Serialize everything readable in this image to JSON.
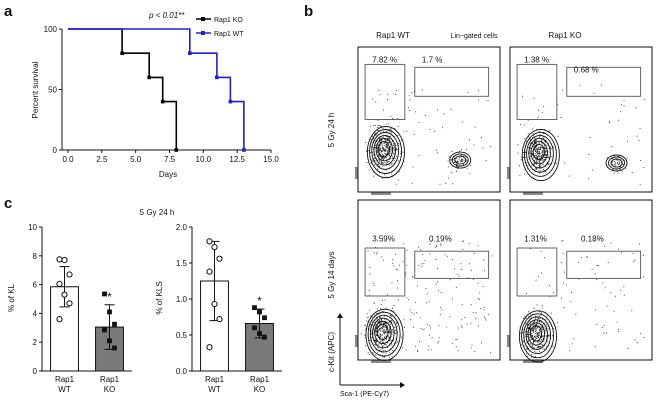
{
  "panels": {
    "a": "a",
    "b": "b",
    "c": "c"
  },
  "chart_data": [
    {
      "id": "survival",
      "type": "line",
      "ylabel": "Percent survival",
      "xlabel": "Days",
      "annotation": "p < 0.01**",
      "xlim": [
        0,
        15
      ],
      "ylim": [
        0,
        100
      ],
      "xticks": [
        "0.0",
        "2.5",
        "5.0",
        "7.5",
        "10.0",
        "12.5",
        "15.0"
      ],
      "xtick_values": [
        0,
        2.5,
        5,
        7.5,
        10,
        12.5,
        15
      ],
      "yticks": [
        "0",
        "50",
        "100"
      ],
      "ytick_values": [
        0,
        50,
        100
      ],
      "series": [
        {
          "name": "Rap1 KO",
          "color": "#000000",
          "marker": "square",
          "steps": [
            [
              0,
              100
            ],
            [
              4,
              100
            ],
            [
              4,
              80
            ],
            [
              6,
              80
            ],
            [
              6,
              60
            ],
            [
              7,
              60
            ],
            [
              7,
              40
            ],
            [
              8,
              40
            ],
            [
              8,
              0
            ]
          ]
        },
        {
          "name": "Rap1 WT",
          "color": "#1f1fd6",
          "marker": "square",
          "steps": [
            [
              0,
              100
            ],
            [
              9,
              100
            ],
            [
              9,
              80
            ],
            [
              11,
              80
            ],
            [
              11,
              60
            ],
            [
              12,
              60
            ],
            [
              12,
              40
            ],
            [
              13,
              40
            ],
            [
              13,
              0
            ]
          ]
        }
      ]
    },
    {
      "id": "kl",
      "type": "bar",
      "title": "5 Gy 24 h",
      "ylabel": "% of KL",
      "ylim": [
        0,
        10
      ],
      "yticks": [
        "0",
        "2",
        "4",
        "6",
        "8",
        "10"
      ],
      "ytick_values": [
        0,
        2,
        4,
        6,
        8,
        10
      ],
      "categories": [
        [
          "Rap1",
          "WT"
        ],
        [
          "Rap1",
          "KO"
        ]
      ],
      "values": [
        5.85,
        3.05
      ],
      "errors": [
        1.4,
        1.55
      ],
      "points": [
        [
          7.75,
          7.7,
          6.7,
          6.05,
          5.3,
          4.7,
          3.6
        ],
        [
          5.35,
          4.1,
          3.25,
          2.85,
          2.1,
          1.6
        ]
      ],
      "significance": [
        "",
        "*"
      ],
      "colors": [
        "#ffffff",
        "#7a7a7a"
      ]
    },
    {
      "id": "kls",
      "type": "bar",
      "ylabel": "% of KLS",
      "ylim": [
        0,
        2.0
      ],
      "yticks": [
        "0.0",
        "0.5",
        "1.0",
        "1.5",
        "2.0"
      ],
      "ytick_values": [
        0,
        0.5,
        1.0,
        1.5,
        2.0
      ],
      "categories": [
        [
          "Rap1",
          "WT"
        ],
        [
          "Rap1",
          "KO"
        ]
      ],
      "values": [
        1.25,
        0.66
      ],
      "errors": [
        0.55,
        0.2
      ],
      "points": [
        [
          1.8,
          1.72,
          1.56,
          1.38,
          0.93,
          0.72,
          0.33
        ],
        [
          0.88,
          0.82,
          0.74,
          0.6,
          0.52,
          0.47
        ]
      ],
      "significance": [
        "",
        "*"
      ],
      "colors": [
        "#ffffff",
        "#7a7a7a"
      ]
    }
  ],
  "flow": {
    "header_left": "Rap1 WT",
    "header_center": "Lin−gated cells",
    "header_right": "Rap1 KO",
    "row_labels": [
      "5 Gy 24 h",
      "5 Gy 14 days"
    ],
    "y_axis_label": "c-Kit (APC)",
    "x_axis_label": "Sca-1 (PE-Cy7)",
    "plots": [
      {
        "name": "wt-24h",
        "left_pct": "7.82 %",
        "right_pct": "1.7 %"
      },
      {
        "name": "ko-24h",
        "left_pct": "1.38 %",
        "right_pct": "0.68 %"
      },
      {
        "name": "wt-14d",
        "left_pct": "3.59%",
        "right_pct": "0.19%"
      },
      {
        "name": "ko-14d",
        "left_pct": "1.31%",
        "right_pct": "0.18%"
      }
    ]
  }
}
